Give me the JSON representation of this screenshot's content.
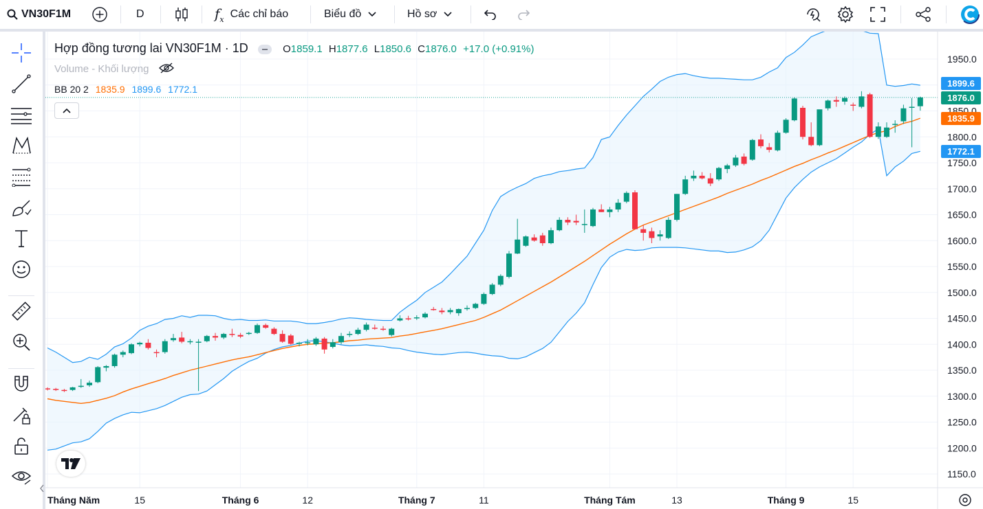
{
  "toolbar": {
    "symbol": "VN30F1M",
    "interval": "D",
    "indicators_label": "Các chỉ báo",
    "chart_label": "Biểu đồ",
    "profile_label": "Hồ sơ"
  },
  "legend": {
    "title": "Hợp đồng tương lai VN30F1M · 1D",
    "o_label": "O",
    "o_value": "1859.1",
    "h_label": "H",
    "h_value": "1877.6",
    "l_label": "L",
    "l_value": "1850.6",
    "c_label": "C",
    "c_value": "1876.0",
    "change": "+17.0 (+0.91%)",
    "volume_label": "Volume - Khối lượng",
    "bb_label": "BB 20 2",
    "bb_basis": "1835.9",
    "bb_upper": "1899.6",
    "bb_lower": "1772.1"
  },
  "price_labels": {
    "upper": "1899.6",
    "close": "1876.0",
    "basis": "1835.9",
    "lower": "1772.1"
  },
  "colors": {
    "up": "#26a69a",
    "up_body": "#089981",
    "down": "#f23645",
    "band": "#2196f3",
    "basis": "#ff6d00",
    "band_fill": "#e3f2fd"
  },
  "icons": [
    "search-icon",
    "add-symbol-icon",
    "candles-icon",
    "indicators-icon",
    "chevron-down-icon",
    "undo-icon",
    "redo-icon",
    "replay-icon",
    "settings-icon",
    "fullscreen-icon",
    "share-icon",
    "crosshair-icon",
    "trendline-icon",
    "fib-icon",
    "pattern-icon",
    "prediction-icon",
    "brush-icon",
    "text-icon",
    "emoji-icon",
    "ruler-icon",
    "zoom-in-icon",
    "magnet-icon",
    "lock-draw-icon",
    "unlock-icon",
    "eye-icon",
    "eye-off-icon"
  ],
  "chart_data": {
    "type": "candlestick",
    "y_ticks": [
      1150,
      1200,
      1250,
      1300,
      1350,
      1400,
      1450,
      1500,
      1550,
      1600,
      1650,
      1700,
      1750,
      1800,
      1850,
      1900,
      1950
    ],
    "ylim": [
      1125,
      1975
    ],
    "x_ticks": [
      {
        "label": "Tháng Năm",
        "index": 0
      },
      {
        "label": "15",
        "index": 11
      },
      {
        "label": "Tháng 6",
        "index": 23
      },
      {
        "label": "12",
        "index": 31
      },
      {
        "label": "Tháng 7",
        "index": 44
      },
      {
        "label": "11",
        "index": 52
      },
      {
        "label": "Tháng Tám",
        "index": 67
      },
      {
        "label": "13",
        "index": 75
      },
      {
        "label": "Tháng 9",
        "index": 88
      },
      {
        "label": "15",
        "index": 96
      }
    ],
    "candles": [
      [
        1315,
        1317,
        1311,
        1314
      ],
      [
        1314,
        1316,
        1310,
        1312
      ],
      [
        1312,
        1314,
        1308,
        1311
      ],
      [
        1312,
        1318,
        1310,
        1317
      ],
      [
        1318,
        1333,
        1316,
        1320
      ],
      [
        1321,
        1330,
        1318,
        1326
      ],
      [
        1327,
        1358,
        1325,
        1356
      ],
      [
        1355,
        1360,
        1348,
        1358
      ],
      [
        1358,
        1382,
        1355,
        1380
      ],
      [
        1380,
        1388,
        1375,
        1385
      ],
      [
        1383,
        1402,
        1381,
        1400
      ],
      [
        1400,
        1405,
        1396,
        1403
      ],
      [
        1403,
        1410,
        1390,
        1393
      ],
      [
        1385,
        1390,
        1375,
        1383
      ],
      [
        1385,
        1410,
        1382,
        1406
      ],
      [
        1408,
        1420,
        1405,
        1412
      ],
      [
        1413,
        1424,
        1402,
        1405
      ],
      [
        1405,
        1410,
        1400,
        1406
      ],
      [
        1405,
        1410,
        1310,
        1405
      ],
      [
        1406,
        1418,
        1404,
        1416
      ],
      [
        1416,
        1422,
        1407,
        1413
      ],
      [
        1413,
        1422,
        1410,
        1420
      ],
      [
        1420,
        1430,
        1414,
        1418
      ],
      [
        1418,
        1422,
        1412,
        1415
      ],
      [
        1420,
        1424,
        1418,
        1422
      ],
      [
        1422,
        1440,
        1420,
        1437
      ],
      [
        1437,
        1440,
        1430,
        1432
      ],
      [
        1430,
        1433,
        1418,
        1420
      ],
      [
        1420,
        1427,
        1403,
        1405
      ],
      [
        1417,
        1420,
        1399,
        1401
      ],
      [
        1401,
        1405,
        1396,
        1403
      ],
      [
        1403,
        1410,
        1398,
        1404
      ],
      [
        1400,
        1414,
        1397,
        1411
      ],
      [
        1411,
        1414,
        1382,
        1390
      ],
      [
        1395,
        1410,
        1392,
        1404
      ],
      [
        1404,
        1422,
        1400,
        1416
      ],
      [
        1418,
        1425,
        1414,
        1420
      ],
      [
        1420,
        1432,
        1418,
        1428
      ],
      [
        1428,
        1442,
        1425,
        1438
      ],
      [
        1432,
        1438,
        1428,
        1430
      ],
      [
        1430,
        1435,
        1426,
        1428
      ],
      [
        1418,
        1432,
        1415,
        1430
      ],
      [
        1446,
        1456,
        1444,
        1450
      ],
      [
        1450,
        1455,
        1446,
        1449
      ],
      [
        1450,
        1456,
        1447,
        1452
      ],
      [
        1452,
        1462,
        1450,
        1459
      ],
      [
        1468,
        1472,
        1465,
        1466
      ],
      [
        1465,
        1470,
        1458,
        1462
      ],
      [
        1462,
        1470,
        1458,
        1466
      ],
      [
        1460,
        1469,
        1455,
        1468
      ],
      [
        1468,
        1475,
        1465,
        1470
      ],
      [
        1470,
        1480,
        1468,
        1478
      ],
      [
        1478,
        1500,
        1476,
        1497
      ],
      [
        1497,
        1518,
        1495,
        1515
      ],
      [
        1515,
        1535,
        1512,
        1532
      ],
      [
        1530,
        1580,
        1527,
        1575
      ],
      [
        1575,
        1642,
        1574,
        1602
      ],
      [
        1590,
        1610,
        1588,
        1608
      ],
      [
        1606,
        1612,
        1598,
        1600
      ],
      [
        1610,
        1615,
        1590,
        1595
      ],
      [
        1595,
        1625,
        1593,
        1620
      ],
      [
        1620,
        1645,
        1618,
        1640
      ],
      [
        1640,
        1645,
        1630,
        1635
      ],
      [
        1638,
        1650,
        1630,
        1635
      ],
      [
        1630,
        1660,
        1615,
        1632
      ],
      [
        1628,
        1663,
        1626,
        1660
      ],
      [
        1660,
        1670,
        1655,
        1655
      ],
      [
        1655,
        1665,
        1645,
        1660
      ],
      [
        1660,
        1680,
        1655,
        1673
      ],
      [
        1675,
        1695,
        1672,
        1692
      ],
      [
        1693,
        1697,
        1625,
        1622
      ],
      [
        1622,
        1630,
        1600,
        1615
      ],
      [
        1618,
        1625,
        1595,
        1605
      ],
      [
        1608,
        1620,
        1600,
        1612
      ],
      [
        1605,
        1645,
        1603,
        1640
      ],
      [
        1640,
        1690,
        1637,
        1690
      ],
      [
        1690,
        1725,
        1688,
        1718
      ],
      [
        1720,
        1735,
        1715,
        1725
      ],
      [
        1725,
        1732,
        1718,
        1720
      ],
      [
        1720,
        1730,
        1705,
        1710
      ],
      [
        1718,
        1742,
        1715,
        1740
      ],
      [
        1738,
        1748,
        1730,
        1745
      ],
      [
        1745,
        1765,
        1742,
        1760
      ],
      [
        1762,
        1768,
        1745,
        1748
      ],
      [
        1756,
        1796,
        1754,
        1794
      ],
      [
        1795,
        1805,
        1778,
        1782
      ],
      [
        1780,
        1788,
        1770,
        1775
      ],
      [
        1774,
        1812,
        1772,
        1808
      ],
      [
        1808,
        1836,
        1806,
        1833
      ],
      [
        1832,
        1876,
        1830,
        1874
      ],
      [
        1856,
        1860,
        1795,
        1800
      ],
      [
        1800,
        1828,
        1782,
        1784
      ],
      [
        1784,
        1845,
        1782,
        1853
      ],
      [
        1855,
        1872,
        1851,
        1870
      ],
      [
        1871,
        1878,
        1858,
        1868
      ],
      [
        1868,
        1878,
        1862,
        1875
      ],
      [
        1862,
        1866,
        1850,
        1860
      ],
      [
        1858,
        1888,
        1855,
        1878
      ],
      [
        1882,
        1885,
        1798,
        1800
      ],
      [
        1800,
        1828,
        1796,
        1820
      ],
      [
        1800,
        1828,
        1798,
        1818
      ],
      [
        1825,
        1832,
        1808,
        1825
      ],
      [
        1830,
        1862,
        1825,
        1855
      ],
      [
        1858,
        1875,
        1780,
        1858
      ],
      [
        1859.1,
        1877.6,
        1850.6,
        1876.0
      ]
    ],
    "bb_upper": [
      1393,
      1385,
      1375,
      1365,
      1367,
      1375,
      1371,
      1381,
      1395,
      1401,
      1412,
      1427,
      1435,
      1440,
      1448,
      1450,
      1455,
      1452,
      1456,
      1456,
      1455,
      1450,
      1447,
      1448,
      1446,
      1446,
      1447,
      1445,
      1445,
      1445,
      1443,
      1440,
      1440,
      1442,
      1445,
      1449,
      1451,
      1450,
      1448,
      1447,
      1446,
      1446,
      1462,
      1474,
      1485,
      1500,
      1510,
      1520,
      1536,
      1553,
      1570,
      1595,
      1620,
      1658,
      1685,
      1695,
      1703,
      1710,
      1720,
      1725,
      1728,
      1733,
      1735,
      1738,
      1740,
      1760,
      1795,
      1800,
      1822,
      1842,
      1860,
      1878,
      1892,
      1907,
      1915,
      1920,
      1922,
      1918,
      1915,
      1913,
      1913,
      1912,
      1911,
      1910,
      1910,
      1915,
      1925,
      1933,
      1953,
      1963,
      1977,
      1993,
      2000,
      2006,
      2009,
      2006,
      2004,
      2005,
      2000,
      1999,
      1900,
      1897.4,
      1899,
      1902,
      1899.6
    ],
    "bb_basis": [
      1295,
      1292,
      1290,
      1288,
      1286,
      1288,
      1292,
      1296,
      1301,
      1308,
      1314,
      1319,
      1324,
      1329,
      1334,
      1340,
      1345,
      1350,
      1354,
      1358,
      1362,
      1366,
      1370,
      1373,
      1376,
      1380,
      1384,
      1388,
      1392,
      1395,
      1398,
      1400,
      1401,
      1402,
      1403,
      1405,
      1407,
      1408,
      1410,
      1411,
      1412,
      1413,
      1416,
      1418,
      1421,
      1424,
      1427,
      1430,
      1434,
      1438,
      1442,
      1446,
      1452,
      1459,
      1466,
      1475,
      1484,
      1493,
      1502,
      1511,
      1520,
      1530,
      1540,
      1550,
      1560,
      1571,
      1582,
      1593,
      1603,
      1613,
      1622,
      1630,
      1636,
      1642,
      1648,
      1654,
      1660,
      1666,
      1672,
      1678,
      1684,
      1691,
      1697,
      1703,
      1709,
      1716,
      1722,
      1729,
      1736,
      1743,
      1749,
      1756,
      1762,
      1769,
      1775,
      1782,
      1789,
      1796,
      1803,
      1808,
      1812,
      1820,
      1826,
      1830,
      1835.9
    ],
    "bb_lower": [
      1196,
      1198,
      1204,
      1210,
      1212,
      1218,
      1232,
      1248,
      1257,
      1264,
      1269,
      1268,
      1272,
      1276,
      1282,
      1290,
      1298,
      1303,
      1304,
      1310,
      1322,
      1334,
      1348,
      1358,
      1367,
      1373,
      1383,
      1390,
      1395,
      1398,
      1402,
      1406,
      1407,
      1405,
      1402,
      1399,
      1397,
      1398,
      1399,
      1397,
      1396,
      1393,
      1392,
      1388,
      1385,
      1383,
      1381,
      1380,
      1382,
      1384,
      1385,
      1383,
      1380,
      1378,
      1377,
      1373,
      1372,
      1376,
      1384,
      1392,
      1404,
      1424,
      1444,
      1460,
      1480,
      1515,
      1548,
      1568,
      1578,
      1583,
      1581,
      1582,
      1586,
      1587,
      1587,
      1587,
      1586,
      1584,
      1582,
      1580,
      1580,
      1577,
      1578,
      1582,
      1588,
      1600,
      1620,
      1651,
      1682,
      1702,
      1718,
      1732,
      1742,
      1750,
      1758,
      1769,
      1780,
      1790,
      1805,
      1815,
      1725,
      1742,
      1753,
      1768,
      1772.1
    ]
  }
}
